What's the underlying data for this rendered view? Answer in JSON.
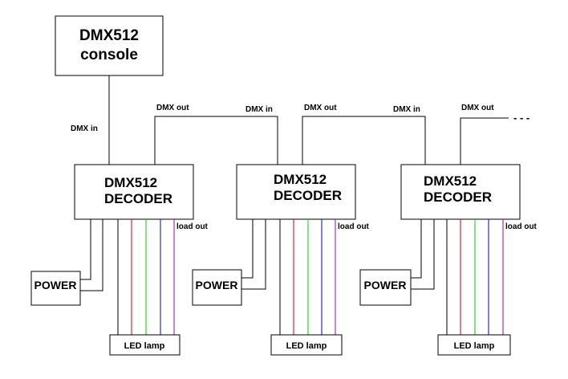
{
  "console": {
    "line1": "DMX512",
    "line2": "console"
  },
  "dmx_in_first": "DMX in",
  "decoders": [
    {
      "line1": "DMX512",
      "line2": "DECODER",
      "dmx_out": "DMX out",
      "dmx_in": "DMX in",
      "load_out": "load out",
      "power": "POWER",
      "lamp": "LED lamp"
    },
    {
      "line1": "DMX512",
      "line2": "DECODER",
      "dmx_out": "DMX out",
      "dmx_in": "DMX in",
      "load_out": "load out",
      "power": "POWER",
      "lamp": "LED lamp"
    },
    {
      "line1": "DMX512",
      "line2": "DECODER",
      "dmx_out": "DMX out",
      "load_out": "load out",
      "power": "POWER",
      "lamp": "LED lamp"
    }
  ],
  "continuation": "- - -",
  "wire_colors": {
    "red": "#cc0000",
    "green": "#00cc00",
    "blue": "#0000cc",
    "purple": "#aa00aa",
    "black": "#000000"
  }
}
